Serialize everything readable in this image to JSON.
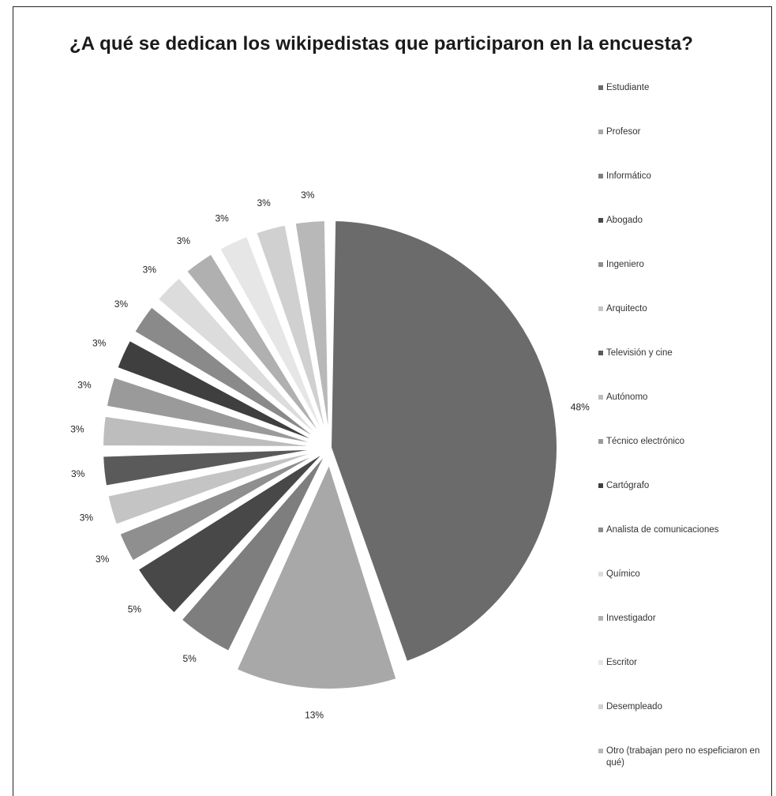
{
  "chart_data": {
    "type": "pie",
    "title": "¿A qué se dedican los wikipedistas que participaron en la encuesta?",
    "legend_position": "right",
    "start_angle_deg": 0,
    "direction": "clockwise",
    "slices": [
      {
        "label": "Estudiante",
        "value": 48,
        "display": "48%",
        "color": "#6b6b6b",
        "exploded": false
      },
      {
        "label": "Profesor",
        "value": 13,
        "display": "13%",
        "color": "#a8a8a8",
        "exploded": true
      },
      {
        "label": "Informático",
        "value": 5,
        "display": "5%",
        "color": "#7e7e7e",
        "exploded": false
      },
      {
        "label": "Abogado",
        "value": 5,
        "display": "5%",
        "color": "#484848",
        "exploded": false
      },
      {
        "label": "Ingeniero",
        "value": 3,
        "display": "3%",
        "color": "#8f8f8f",
        "exploded": false
      },
      {
        "label": "Arquitecto",
        "value": 3,
        "display": "3%",
        "color": "#c4c4c4",
        "exploded": false
      },
      {
        "label": "Televisión y cine",
        "value": 3,
        "display": "3%",
        "color": "#5a5a5a",
        "exploded": false
      },
      {
        "label": "Autónomo",
        "value": 3,
        "display": "3%",
        "color": "#bdbdbd",
        "exploded": false
      },
      {
        "label": "Técnico electrónico",
        "value": 3,
        "display": "3%",
        "color": "#9a9a9a",
        "exploded": false
      },
      {
        "label": "Cartógrafo",
        "value": 3,
        "display": "3%",
        "color": "#3f3f3f",
        "exploded": false
      },
      {
        "label": "Analista de comunicaciones",
        "value": 3,
        "display": "3%",
        "color": "#8a8a8a",
        "exploded": false
      },
      {
        "label": "Químico",
        "value": 3,
        "display": "3%",
        "color": "#dcdcdc",
        "exploded": false
      },
      {
        "label": "Investigador",
        "value": 3,
        "display": "3%",
        "color": "#b0b0b0",
        "exploded": false
      },
      {
        "label": "Escritor",
        "value": 3,
        "display": "3%",
        "color": "#e6e6e6",
        "exploded": false
      },
      {
        "label": "Desempleado",
        "value": 3,
        "display": "3%",
        "color": "#d0d0d0",
        "exploded": false
      },
      {
        "label": "Otro (trabajan pero no espeficiaron en qué)",
        "value": 3,
        "display": "3%",
        "color": "#b8b8b8",
        "exploded": false
      }
    ]
  }
}
